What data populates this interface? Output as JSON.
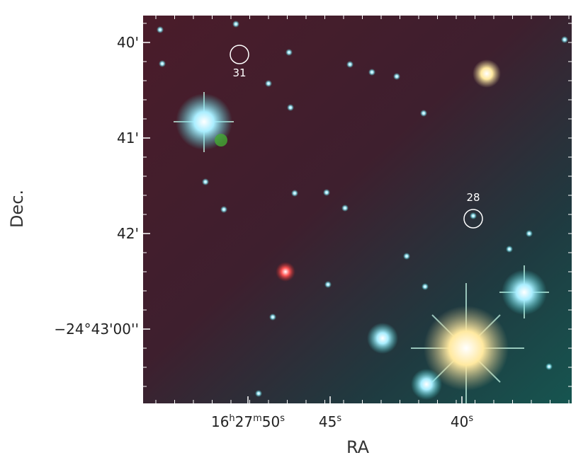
{
  "axes": {
    "x_label": "RA",
    "y_label": "Dec.",
    "x_ticks": [
      {
        "parts": [
          "16",
          "h",
          "27",
          "m",
          "50",
          "s"
        ]
      },
      {
        "parts": [
          "45",
          "s"
        ]
      },
      {
        "parts": [
          "40",
          "s"
        ]
      }
    ],
    "y_ticks": [
      "40'",
      "41'",
      "42'",
      "−24°43'00''"
    ]
  },
  "sources": [
    {
      "label": "31"
    },
    {
      "label": "28"
    }
  ]
}
